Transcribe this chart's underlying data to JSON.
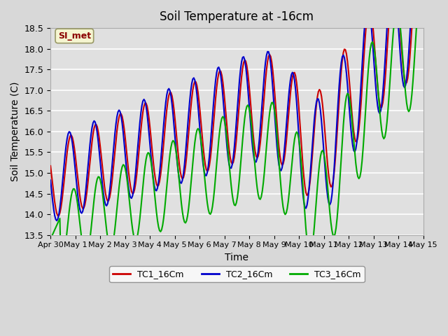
{
  "title": "Soil Temperature at -16cm",
  "xlabel": "Time",
  "ylabel": "Soil Temperature (C)",
  "ylim": [
    13.5,
    18.5
  ],
  "plot_bg_color": "#e0e0e0",
  "fig_bg_color": "#d8d8d8",
  "grid_color": "#ffffff",
  "legend_label": "SI_met",
  "line_colors": {
    "TC1_16Cm": "#cc0000",
    "TC2_16Cm": "#0000cc",
    "TC3_16Cm": "#00aa00"
  },
  "x_tick_labels": [
    "Apr 30",
    "May 1",
    "May 2",
    "May 3",
    "May 4",
    "May 5",
    "May 6",
    "May 7",
    "May 8",
    "May 9",
    "May 10",
    "May 11",
    "May 12",
    "May 13",
    "May 14",
    "May 15"
  ],
  "yticks": [
    13.5,
    14.0,
    14.5,
    15.0,
    15.5,
    16.0,
    16.5,
    17.0,
    17.5,
    18.0,
    18.5
  ],
  "line_width": 1.5
}
